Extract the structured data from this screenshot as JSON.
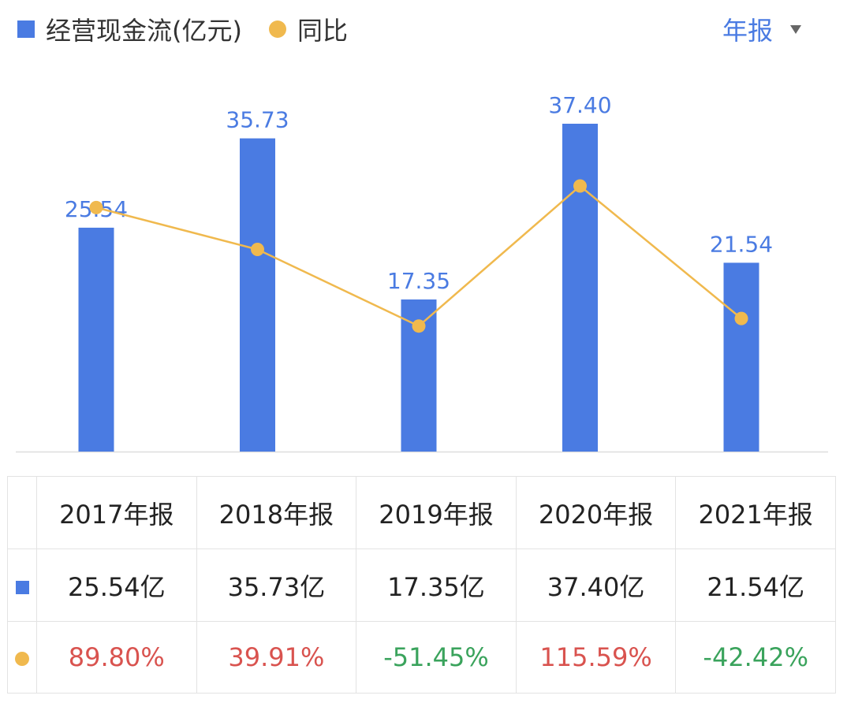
{
  "legend": {
    "bar_label": "经营现金流(亿元)",
    "line_label": "同比"
  },
  "period_selector": {
    "label": "年报"
  },
  "colors": {
    "bar": "#4a7be2",
    "line": "#f0b94e",
    "bar_label": "#4a7be2",
    "positive": "#d9534f",
    "negative": "#3aa35c",
    "period": "#4a7be2",
    "axis": "#dddddd"
  },
  "chart_data": {
    "type": "bar",
    "categories": [
      "2017年报",
      "2018年报",
      "2019年报",
      "2020年报",
      "2021年报"
    ],
    "series": [
      {
        "name": "经营现金流(亿元)",
        "type": "bar",
        "values": [
          25.54,
          35.73,
          17.35,
          37.4,
          21.54
        ],
        "labels": [
          "25.54",
          "35.73",
          "17.35",
          "37.40",
          "21.54"
        ]
      },
      {
        "name": "同比",
        "type": "line",
        "values": [
          89.8,
          39.91,
          -51.45,
          115.59,
          -42.42
        ]
      }
    ],
    "grid": false,
    "legend_position": "top-left"
  },
  "table": {
    "headers": [
      "2017年报",
      "2018年报",
      "2019年报",
      "2020年报",
      "2021年报"
    ],
    "values": [
      "25.54亿",
      "35.73亿",
      "17.35亿",
      "37.40亿",
      "21.54亿"
    ],
    "yoy": [
      "89.80%",
      "39.91%",
      "-51.45%",
      "115.59%",
      "-42.42%"
    ]
  }
}
